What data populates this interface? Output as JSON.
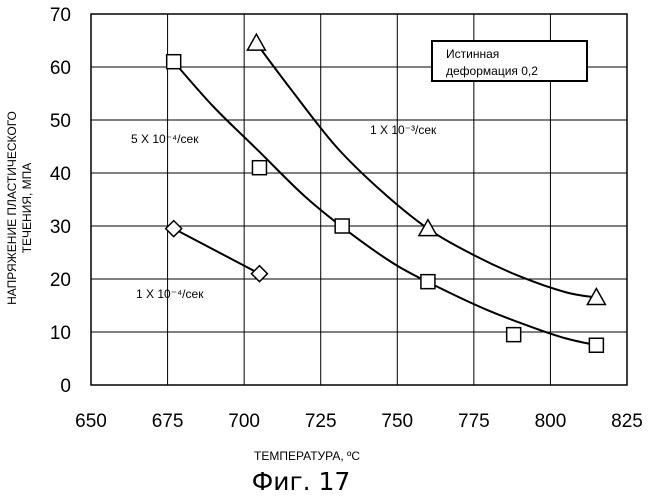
{
  "chart_data": {
    "type": "scatter",
    "xlabel": "ТЕМПЕРАТУРА, ºC",
    "ylabel_line1": "НАПРЯЖЕНИЕ ПЛАСТИЧЕСКОГО",
    "ylabel_line2": "ТЕЧЕНИЯ, МПА",
    "xlim": [
      650,
      825
    ],
    "ylim": [
      0,
      70
    ],
    "xticks": [
      "650",
      "675",
      "700",
      "725",
      "750",
      "775",
      "800",
      "825"
    ],
    "yticks": [
      "0",
      "10",
      "20",
      "30",
      "40",
      "50",
      "60",
      "70"
    ],
    "grid": true,
    "legend_box": {
      "line1": "Истинная",
      "line2": "деформация 0,2"
    },
    "series": [
      {
        "label": "5 X 10⁻⁴/сек",
        "marker": "square",
        "points": [
          [
            677,
            61
          ],
          [
            705,
            41
          ],
          [
            732,
            30
          ],
          [
            760,
            19.5
          ],
          [
            788,
            9.5
          ],
          [
            815,
            7.5
          ]
        ],
        "curve": [
          [
            677,
            61
          ],
          [
            690,
            52.5
          ],
          [
            705,
            44
          ],
          [
            720,
            35.5
          ],
          [
            735,
            28.5
          ],
          [
            750,
            22.5
          ],
          [
            765,
            18
          ],
          [
            780,
            14
          ],
          [
            795,
            10.7
          ],
          [
            805,
            8.8
          ],
          [
            815,
            7.5
          ]
        ]
      },
      {
        "label": "1 X 10⁻³/сек",
        "marker": "triangle",
        "points": [
          [
            704,
            64.5
          ],
          [
            760,
            29.5
          ],
          [
            815,
            16.5
          ]
        ],
        "curve": [
          [
            704,
            64.5
          ],
          [
            715,
            56
          ],
          [
            730,
            45
          ],
          [
            745,
            36.5
          ],
          [
            760,
            29.5
          ],
          [
            775,
            24.5
          ],
          [
            790,
            20.5
          ],
          [
            805,
            17.5
          ],
          [
            815,
            16.5
          ]
        ]
      },
      {
        "label": "1 X 10⁻⁴/сек",
        "marker": "diamond",
        "points": [
          [
            677,
            29.5
          ],
          [
            705,
            21
          ]
        ],
        "curve": [
          [
            677,
            29.5
          ],
          [
            705,
            21
          ]
        ]
      }
    ]
  },
  "caption": "Фиг. 17"
}
